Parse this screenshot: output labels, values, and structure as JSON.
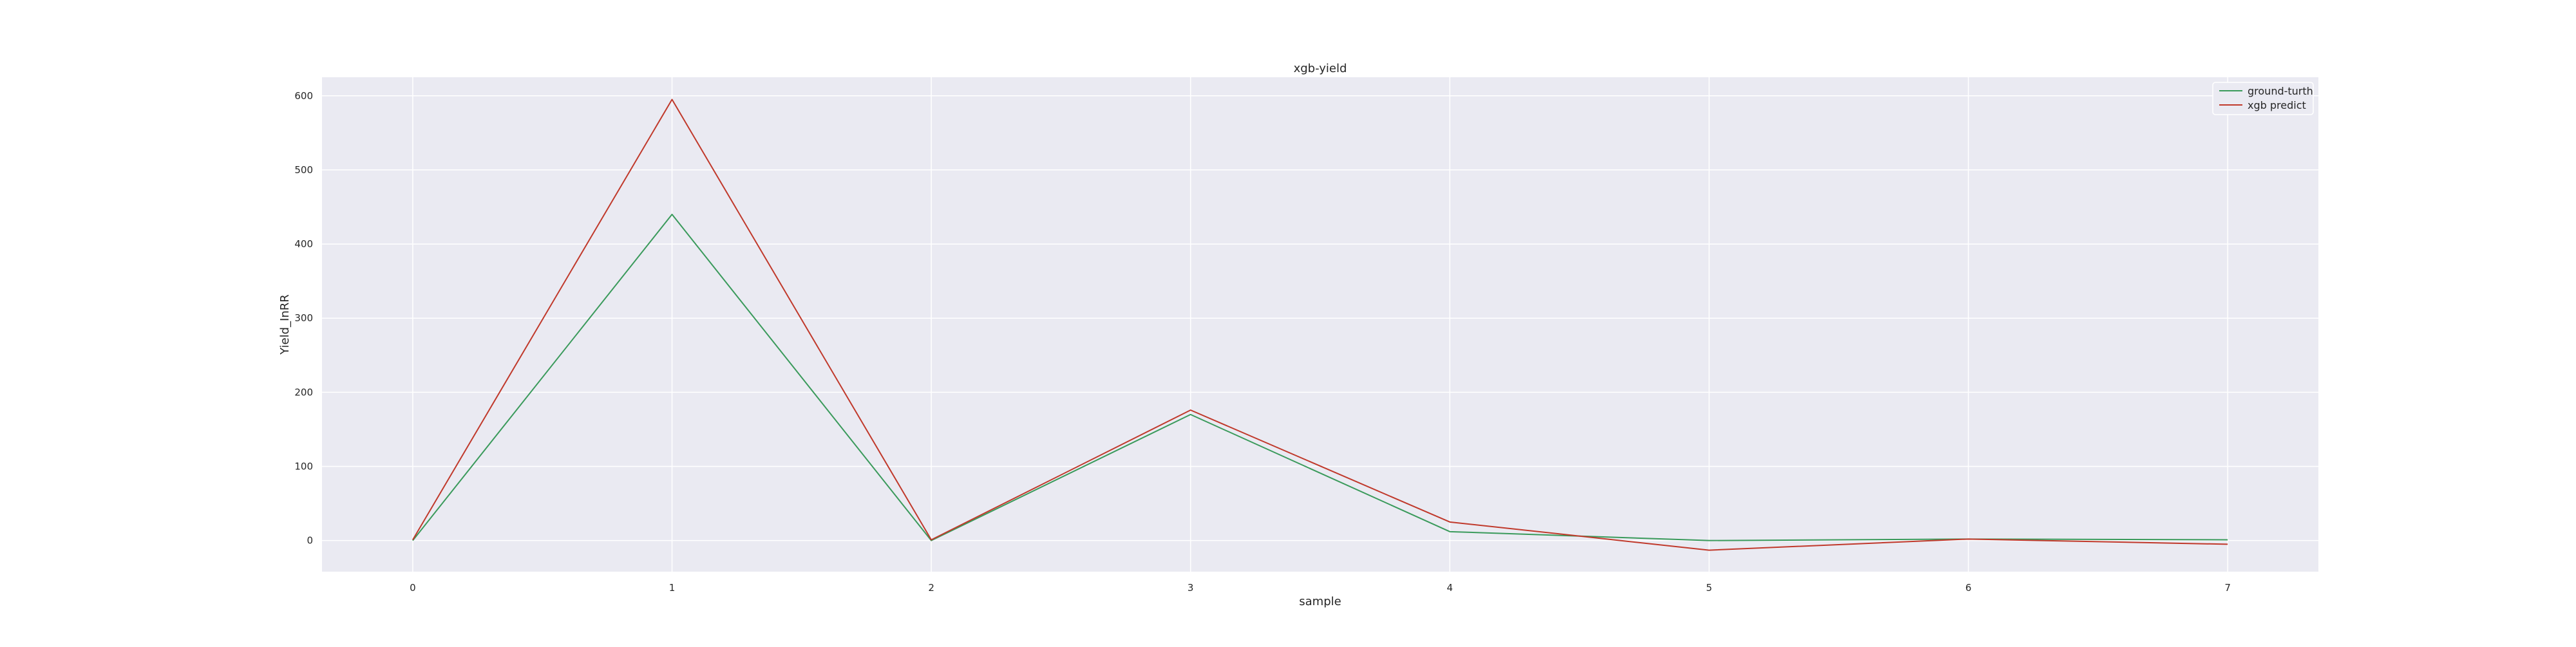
{
  "chart_data": {
    "type": "line",
    "title": "xgb-yield",
    "xlabel": "sample",
    "ylabel": "Yield_InRR",
    "x": [
      0,
      1,
      2,
      3,
      4,
      5,
      6,
      7
    ],
    "xticks": [
      0,
      1,
      2,
      3,
      4,
      5,
      6,
      7
    ],
    "yticks": [
      0,
      100,
      200,
      300,
      400,
      500,
      600
    ],
    "xlim": [
      -0.35,
      7.35
    ],
    "ylim": [
      -42,
      625
    ],
    "grid": true,
    "legend_position": "top-right",
    "series": [
      {
        "name": "ground-turth",
        "color": "#3a9a5b",
        "values": [
          0,
          440,
          0,
          170,
          12,
          0,
          2,
          1
        ]
      },
      {
        "name": "xgb predict",
        "color": "#c0392b",
        "values": [
          1,
          595,
          1,
          176,
          25,
          -13,
          2,
          -5
        ]
      }
    ]
  },
  "colors": {
    "plot_background": "#eaeaf2",
    "grid": "#ffffff"
  }
}
